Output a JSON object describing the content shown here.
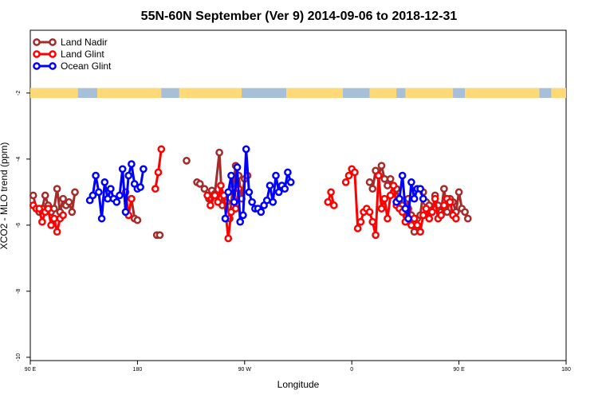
{
  "chart_data": {
    "type": "line",
    "title": "55N-60N September (Ver 9)   2014-09-06 to 2018-12-31",
    "xlabel": "Longitude",
    "ylabel": "XCO2 - MLO trend (ppm)",
    "xlim": [
      90,
      450
    ],
    "ylim": [
      -10.1,
      -0.1
    ],
    "x_ticks": [
      {
        "value": 90,
        "label": "90 E"
      },
      {
        "value": 162,
        "label": "180"
      },
      {
        "value": 234,
        "label": "90 W"
      },
      {
        "value": 306,
        "label": "0"
      },
      {
        "value": 378,
        "label": "90 E"
      },
      {
        "value": 450,
        "label": "180"
      }
    ],
    "y_ticks": [
      {
        "value": -2,
        "label": "-2"
      },
      {
        "value": -4,
        "label": "-4"
      },
      {
        "value": -6,
        "label": "-6"
      },
      {
        "value": -8,
        "label": "-8"
      },
      {
        "value": -10,
        "label": "-10"
      }
    ],
    "grid": false,
    "legend_position": "top-left",
    "land_strip": {
      "y_from": -1.85,
      "y_to": -2.15,
      "land_color": "#ffd978",
      "ocean_color": "#a8bfd8"
    },
    "series": [
      {
        "name": "Land Nadir",
        "color": "#a52a2a",
        "segments": [
          [
            [
              92,
              -5.1
            ],
            [
              94,
              -5.5
            ],
            [
              96,
              -5.6
            ],
            [
              98,
              -5.5
            ],
            [
              100,
              -5.1
            ],
            [
              102,
              -5.4
            ],
            [
              104,
              -5.6
            ],
            [
              106,
              -5.5
            ],
            [
              108,
              -4.9
            ],
            [
              110,
              -5.6
            ],
            [
              112,
              -5.2
            ],
            [
              114,
              -5.4
            ],
            [
              116,
              -5.3
            ],
            [
              118,
              -5.6
            ],
            [
              120,
              -5.0
            ]
          ],
          [
            [
              158,
              -5.2
            ],
            [
              160,
              -5.8
            ],
            [
              162,
              -5.85
            ]
          ],
          [
            [
              175,
              -6.3
            ],
            [
              177,
              -6.3
            ]
          ],
          [
            [
              195,
              -4.05
            ]
          ],
          [
            [
              202,
              -4.7
            ],
            [
              204,
              -4.75
            ],
            [
              207,
              -4.9
            ],
            [
              210,
              -5.2
            ],
            [
              212,
              -4.95
            ],
            [
              214,
              -5.05
            ],
            [
              217,
              -3.8
            ],
            [
              219,
              -5.4
            ],
            [
              222,
              -5.3
            ],
            [
              224,
              -5.8
            ],
            [
              226,
              -4.9
            ],
            [
              228,
              -4.2
            ],
            [
              230,
              -4.5
            ],
            [
              232,
              -5.2
            ],
            [
              234,
              -4.6
            ],
            [
              236,
              -4.5
            ]
          ],
          [
            [
              318,
              -4.7
            ],
            [
              320,
              -4.9
            ],
            [
              322,
              -4.35
            ],
            [
              324,
              -4.5
            ],
            [
              326,
              -4.2
            ],
            [
              328,
              -4.6
            ],
            [
              330,
              -4.8
            ],
            [
              332,
              -4.6
            ],
            [
              334,
              -5.0
            ],
            [
              336,
              -4.9
            ],
            [
              338,
              -5.3
            ],
            [
              340,
              -5.4
            ],
            [
              342,
              -5.6
            ],
            [
              344,
              -5.2
            ],
            [
              346,
              -5.7
            ],
            [
              348,
              -6.2
            ],
            [
              350,
              -5.8
            ],
            [
              352,
              -5.7
            ],
            [
              354,
              -5.0
            ],
            [
              356,
              -5.3
            ],
            [
              358,
              -5.4
            ],
            [
              360,
              -5.6
            ],
            [
              362,
              -5.1
            ],
            [
              364,
              -5.4
            ],
            [
              366,
              -5.6
            ],
            [
              368,
              -4.9
            ],
            [
              370,
              -5.6
            ],
            [
              372,
              -5.2
            ],
            [
              374,
              -5.3
            ],
            [
              376,
              -5.6
            ],
            [
              378,
              -5.0
            ],
            [
              380,
              -5.5
            ],
            [
              382,
              -5.6
            ],
            [
              384,
              -5.8
            ]
          ]
        ]
      },
      {
        "name": "Land Glint",
        "color": "#ff0000",
        "segments": [
          [
            [
              92,
              -5.4
            ],
            [
              94,
              -5.5
            ],
            [
              96,
              -5.5
            ],
            [
              98,
              -5.9
            ],
            [
              100,
              -5.6
            ],
            [
              102,
              -5.5
            ],
            [
              104,
              -6.0
            ],
            [
              106,
              -5.8
            ],
            [
              108,
              -6.2
            ],
            [
              110,
              -5.8
            ],
            [
              112,
              -5.7
            ]
          ],
          [
            [
              154,
              -5.0
            ],
            [
              156,
              -5.7
            ],
            [
              158,
              -5.2
            ]
          ],
          [
            [
              174,
              -4.9
            ],
            [
              176,
              -4.4
            ],
            [
              178,
              -3.7
            ]
          ],
          [
            [
              209,
              -5.1
            ],
            [
              211,
              -5.4
            ],
            [
              214,
              -5.1
            ],
            [
              216,
              -5.3
            ],
            [
              218,
              -4.8
            ],
            [
              220,
              -5.1
            ],
            [
              223,
              -6.4
            ],
            [
              225,
              -5.6
            ],
            [
              228,
              -5.5
            ],
            [
              230,
              -4.9
            ]
          ],
          [
            [
              290,
              -5.3
            ],
            [
              292,
              -5.0
            ],
            [
              294,
              -5.4
            ]
          ],
          [
            [
              302,
              -4.7
            ],
            [
              304,
              -4.5
            ],
            [
              306,
              -4.3
            ],
            [
              308,
              -4.4
            ],
            [
              310,
              -6.1
            ],
            [
              312,
              -5.9
            ],
            [
              314,
              -5.6
            ],
            [
              316,
              -5.5
            ],
            [
              318,
              -5.6
            ],
            [
              320,
              -5.9
            ],
            [
              322,
              -6.3
            ],
            [
              324,
              -4.5
            ],
            [
              326,
              -5.5
            ],
            [
              328,
              -5.2
            ],
            [
              330,
              -5.8
            ],
            [
              332,
              -5.1
            ],
            [
              334,
              -4.8
            ],
            [
              336,
              -5.4
            ],
            [
              338,
              -5.5
            ],
            [
              340,
              -5.6
            ],
            [
              342,
              -5.9
            ],
            [
              344,
              -5.5
            ],
            [
              346,
              -6.0
            ],
            [
              348,
              -5.8
            ],
            [
              350,
              -6.0
            ],
            [
              352,
              -6.2
            ],
            [
              354,
              -5.7
            ],
            [
              356,
              -5.5
            ],
            [
              358,
              -5.8
            ],
            [
              360,
              -5.6
            ],
            [
              362,
              -5.2
            ],
            [
              364,
              -5.8
            ],
            [
              366,
              -5.7
            ],
            [
              368,
              -5.4
            ],
            [
              370,
              -5.2
            ],
            [
              372,
              -5.3
            ],
            [
              374,
              -5.7
            ],
            [
              376,
              -5.8
            ]
          ]
        ]
      },
      {
        "name": "Ocean Glint",
        "color": "#0000ff",
        "segments": [
          [
            [
              130,
              -5.25
            ],
            [
              132,
              -5.1
            ],
            [
              134,
              -4.5
            ],
            [
              136,
              -5.0
            ],
            [
              138,
              -5.8
            ],
            [
              140,
              -4.7
            ],
            [
              142,
              -5.2
            ],
            [
              144,
              -4.9
            ],
            [
              146,
              -5.2
            ],
            [
              148,
              -5.3
            ],
            [
              150,
              -5.1
            ],
            [
              152,
              -4.3
            ],
            [
              154,
              -5.6
            ],
            [
              156,
              -4.5
            ],
            [
              158,
              -4.15
            ],
            [
              160,
              -4.75
            ],
            [
              162,
              -4.9
            ],
            [
              164,
              -4.85
            ],
            [
              166,
              -4.3
            ]
          ],
          [
            [
              221,
              -5.8
            ],
            [
              223,
              -5.0
            ],
            [
              225,
              -4.5
            ],
            [
              227,
              -5.3
            ],
            [
              229,
              -4.25
            ],
            [
              231,
              -5.9
            ],
            [
              233,
              -5.7
            ],
            [
              235,
              -3.7
            ],
            [
              237,
              -5.0
            ],
            [
              239,
              -5.3
            ],
            [
              241,
              -5.5
            ],
            [
              243,
              -5.5
            ],
            [
              245,
              -5.6
            ],
            [
              247,
              -5.4
            ],
            [
              249,
              -5.25
            ],
            [
              251,
              -4.8
            ],
            [
              253,
              -5.3
            ],
            [
              255,
              -4.5
            ],
            [
              257,
              -5.0
            ],
            [
              259,
              -4.8
            ],
            [
              261,
              -4.9
            ],
            [
              263,
              -4.4
            ],
            [
              265,
              -4.7
            ]
          ],
          [
            [
              336,
              -5.3
            ],
            [
              338,
              -5.2
            ],
            [
              340,
              -4.5
            ],
            [
              342,
              -5.5
            ],
            [
              344,
              -5.8
            ],
            [
              346,
              -4.7
            ],
            [
              348,
              -5.2
            ],
            [
              350,
              -4.9
            ],
            [
              352,
              -4.9
            ],
            [
              354,
              -5.2
            ]
          ]
        ]
      }
    ]
  }
}
